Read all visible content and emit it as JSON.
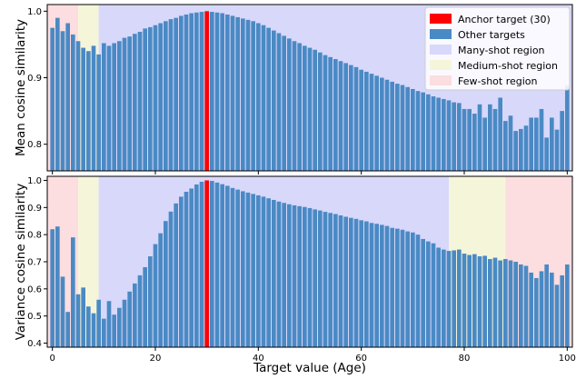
{
  "chart_data": [
    {
      "type": "bar",
      "id": "mean",
      "ylabel": "Mean cosine similarity",
      "xlim": [
        -1,
        101
      ],
      "ylim": [
        0.76,
        1.01
      ],
      "yticks": [
        0.8,
        0.9,
        1.0
      ],
      "ytick_labels": [
        "0.8",
        "0.9",
        "1.0"
      ],
      "grid": false,
      "legend": {
        "placement": "top-right",
        "entries": [
          {
            "label": "Anchor target (30)",
            "color": "#ff0000"
          },
          {
            "label": "Other targets",
            "color": "#4a8ac4"
          },
          {
            "label": "Many-shot region",
            "color": "#d8d8fb"
          },
          {
            "label": "Medium-shot region",
            "color": "#f5f5da"
          },
          {
            "label": "Few-shot region",
            "color": "#fcdde0"
          }
        ]
      },
      "regions": [
        {
          "type": "few",
          "from": -1,
          "to": 5
        },
        {
          "type": "medium",
          "from": 5,
          "to": 9
        },
        {
          "type": "many",
          "from": 9,
          "to": 101
        }
      ],
      "x": [
        0,
        1,
        2,
        3,
        4,
        5,
        6,
        7,
        8,
        9,
        10,
        11,
        12,
        13,
        14,
        15,
        16,
        17,
        18,
        19,
        20,
        21,
        22,
        23,
        24,
        25,
        26,
        27,
        28,
        29,
        30,
        31,
        32,
        33,
        34,
        35,
        36,
        37,
        38,
        39,
        40,
        41,
        42,
        43,
        44,
        45,
        46,
        47,
        48,
        49,
        50,
        51,
        52,
        53,
        54,
        55,
        56,
        57,
        58,
        59,
        60,
        61,
        62,
        63,
        64,
        65,
        66,
        67,
        68,
        69,
        70,
        71,
        72,
        73,
        74,
        75,
        76,
        77,
        78,
        79,
        80,
        81,
        82,
        83,
        84,
        85,
        86,
        87,
        88,
        89,
        90,
        91,
        92,
        93,
        94,
        95,
        96,
        97,
        98,
        99,
        100
      ],
      "values": [
        0.975,
        0.99,
        0.97,
        0.982,
        0.965,
        0.955,
        0.945,
        0.94,
        0.948,
        0.935,
        0.952,
        0.948,
        0.952,
        0.955,
        0.96,
        0.962,
        0.966,
        0.969,
        0.974,
        0.976,
        0.979,
        0.982,
        0.985,
        0.988,
        0.99,
        0.993,
        0.995,
        0.997,
        0.998,
        0.999,
        1.0,
        0.999,
        0.998,
        0.997,
        0.995,
        0.993,
        0.991,
        0.989,
        0.987,
        0.985,
        0.982,
        0.979,
        0.975,
        0.971,
        0.967,
        0.963,
        0.959,
        0.955,
        0.952,
        0.948,
        0.945,
        0.942,
        0.938,
        0.934,
        0.931,
        0.928,
        0.925,
        0.922,
        0.919,
        0.916,
        0.912,
        0.909,
        0.906,
        0.903,
        0.9,
        0.897,
        0.894,
        0.891,
        0.889,
        0.886,
        0.883,
        0.88,
        0.878,
        0.875,
        0.872,
        0.87,
        0.868,
        0.866,
        0.863,
        0.862,
        0.853,
        0.853,
        0.846,
        0.86,
        0.84,
        0.86,
        0.853,
        0.87,
        0.835,
        0.843,
        0.82,
        0.823,
        0.828,
        0.84,
        0.84,
        0.853,
        0.81,
        0.84,
        0.822,
        0.85,
        0.888
      ],
      "anchor_x": 30
    },
    {
      "type": "bar",
      "id": "variance",
      "ylabel": "Variance cosine similarity",
      "xlabel": "Target value (Age)",
      "xlim": [
        -1,
        101
      ],
      "ylim": [
        0.385,
        1.015
      ],
      "xticks": [
        0,
        20,
        40,
        60,
        80,
        100
      ],
      "xtick_labels": [
        "0",
        "20",
        "40",
        "60",
        "80",
        "100"
      ],
      "yticks": [
        0.4,
        0.5,
        0.6,
        0.7,
        0.8,
        0.9,
        1.0
      ],
      "ytick_labels": [
        "0.4",
        "0.5",
        "0.6",
        "0.7",
        "0.8",
        "0.9",
        "1.0"
      ],
      "grid": false,
      "regions": [
        {
          "type": "few",
          "from": -1,
          "to": 5
        },
        {
          "type": "medium",
          "from": 5,
          "to": 9
        },
        {
          "type": "many",
          "from": 9,
          "to": 77
        },
        {
          "type": "medium",
          "from": 77,
          "to": 88
        },
        {
          "type": "few",
          "from": 88,
          "to": 101
        }
      ],
      "x": [
        0,
        1,
        2,
        3,
        4,
        5,
        6,
        7,
        8,
        9,
        10,
        11,
        12,
        13,
        14,
        15,
        16,
        17,
        18,
        19,
        20,
        21,
        22,
        23,
        24,
        25,
        26,
        27,
        28,
        29,
        30,
        31,
        32,
        33,
        34,
        35,
        36,
        37,
        38,
        39,
        40,
        41,
        42,
        43,
        44,
        45,
        46,
        47,
        48,
        49,
        50,
        51,
        52,
        53,
        54,
        55,
        56,
        57,
        58,
        59,
        60,
        61,
        62,
        63,
        64,
        65,
        66,
        67,
        68,
        69,
        70,
        71,
        72,
        73,
        74,
        75,
        76,
        77,
        78,
        79,
        80,
        81,
        82,
        83,
        84,
        85,
        86,
        87,
        88,
        89,
        90,
        91,
        92,
        93,
        94,
        95,
        96,
        97,
        98,
        99,
        100
      ],
      "values": [
        0.82,
        0.83,
        0.645,
        0.515,
        0.79,
        0.58,
        0.605,
        0.535,
        0.51,
        0.56,
        0.49,
        0.555,
        0.505,
        0.53,
        0.56,
        0.59,
        0.62,
        0.65,
        0.68,
        0.72,
        0.765,
        0.805,
        0.85,
        0.885,
        0.915,
        0.94,
        0.958,
        0.97,
        0.985,
        0.995,
        1.0,
        0.998,
        0.992,
        0.986,
        0.98,
        0.972,
        0.966,
        0.96,
        0.955,
        0.95,
        0.945,
        0.94,
        0.934,
        0.928,
        0.922,
        0.917,
        0.912,
        0.908,
        0.905,
        0.902,
        0.898,
        0.893,
        0.889,
        0.884,
        0.88,
        0.876,
        0.871,
        0.866,
        0.862,
        0.858,
        0.853,
        0.849,
        0.843,
        0.84,
        0.836,
        0.832,
        0.825,
        0.822,
        0.818,
        0.812,
        0.808,
        0.8,
        0.784,
        0.775,
        0.768,
        0.752,
        0.745,
        0.74,
        0.742,
        0.745,
        0.73,
        0.725,
        0.728,
        0.72,
        0.722,
        0.71,
        0.715,
        0.705,
        0.71,
        0.705,
        0.7,
        0.69,
        0.685,
        0.66,
        0.64,
        0.665,
        0.69,
        0.66,
        0.615,
        0.65,
        0.69
      ],
      "anchor_x": 30
    }
  ]
}
